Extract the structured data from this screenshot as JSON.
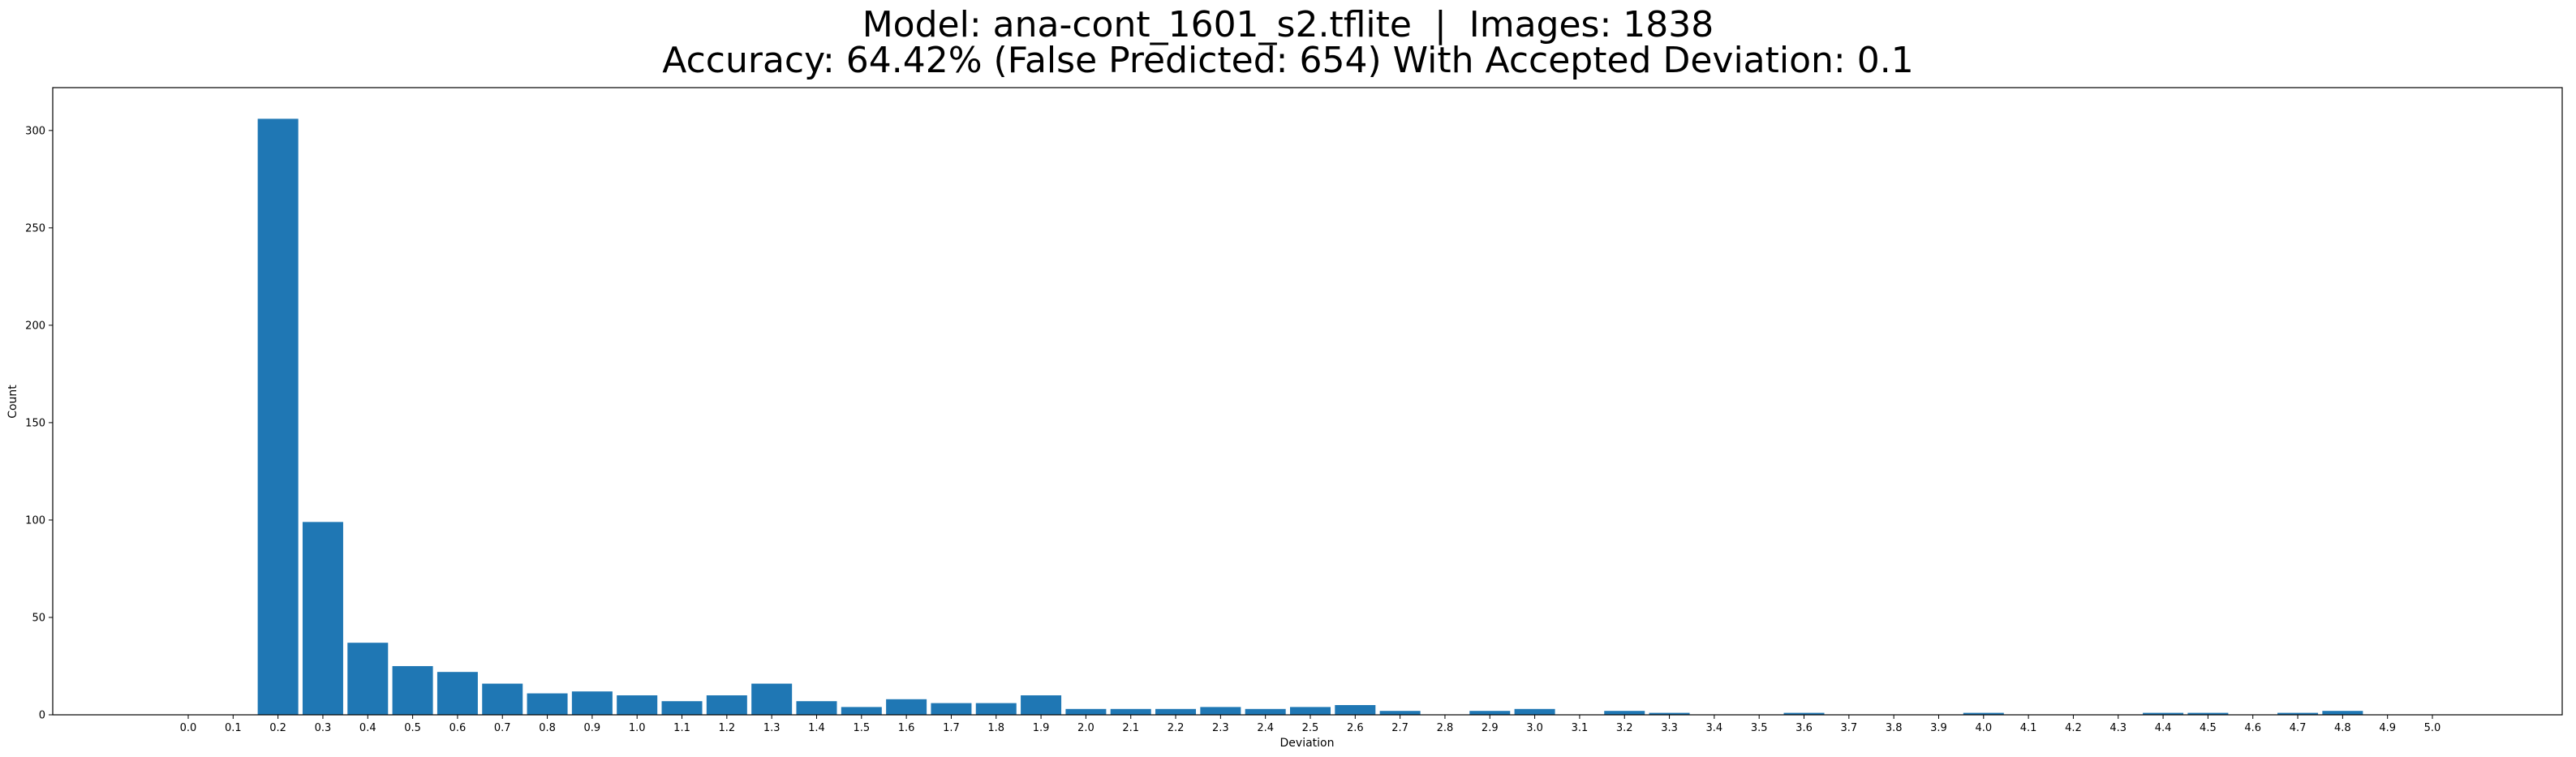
{
  "chart_data": {
    "type": "bar",
    "title_line1": "Model: ana-cont_1601_s2.tflite  |  Images: 1838",
    "title_line2": "Accuracy: 64.42% (False Predicted: 654) With Accepted Deviation: 0.1",
    "xlabel": "Deviation",
    "ylabel": "Count",
    "ylim": [
      0,
      322
    ],
    "yticks": [
      0,
      50,
      100,
      150,
      200,
      250,
      300
    ],
    "bar_color": "#1f77b4",
    "categories": [
      "0.0",
      "0.1",
      "0.2",
      "0.3",
      "0.4",
      "0.5",
      "0.6",
      "0.7",
      "0.8",
      "0.9",
      "1.0",
      "1.1",
      "1.2",
      "1.3",
      "1.4",
      "1.5",
      "1.6",
      "1.7",
      "1.8",
      "1.9",
      "2.0",
      "2.1",
      "2.2",
      "2.3",
      "2.4",
      "2.5",
      "2.6",
      "2.7",
      "2.8",
      "2.9",
      "3.0",
      "3.1",
      "3.2",
      "3.3",
      "3.4",
      "3.5",
      "3.6",
      "3.7",
      "3.8",
      "3.9",
      "4.0",
      "4.1",
      "4.2",
      "4.3",
      "4.4",
      "4.5",
      "4.6",
      "4.7",
      "4.8",
      "4.9",
      "5.0"
    ],
    "values": [
      0,
      0,
      306,
      99,
      37,
      25,
      22,
      16,
      11,
      12,
      10,
      7,
      10,
      16,
      7,
      4,
      8,
      6,
      6,
      10,
      3,
      3,
      3,
      4,
      3,
      4,
      5,
      2,
      0,
      2,
      3,
      0,
      2,
      1,
      0,
      0,
      1,
      0,
      0,
      0,
      1,
      0,
      0,
      0,
      1,
      1,
      0,
      1,
      2,
      0,
      0
    ]
  }
}
